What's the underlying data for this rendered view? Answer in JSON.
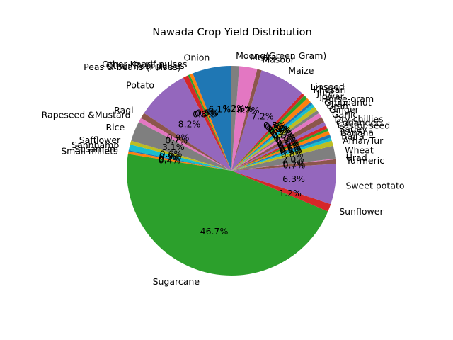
{
  "chart_data": {
    "type": "pie",
    "title": "Nawada Crop Yield Distribution",
    "start_angle_deg": 90,
    "direction": "counterclockwise",
    "palette": [
      "#1f77b4",
      "#ff7f0e",
      "#2ca02c",
      "#d62728",
      "#9467bd",
      "#8c564b",
      "#e377c2",
      "#7f7f7f",
      "#bcbd22",
      "#17becf"
    ],
    "slices": [
      {
        "label": "Onion",
        "value": 6.1,
        "pct_label": "6.1%"
      },
      {
        "label": "Other Kharif pulses",
        "value": 0.5,
        "pct_label": "0.5%"
      },
      {
        "label": "Other Rabi pulses",
        "value": 0.3,
        "pct_label": "0.3%"
      },
      {
        "label": "Peas & beans (Pulses)",
        "value": 0.8,
        "pct_label": "0.8%"
      },
      {
        "label": "Potato",
        "value": 8.2,
        "pct_label": "8.2%"
      },
      {
        "label": "Ragi",
        "value": 0.9,
        "pct_label": "0.9%"
      },
      {
        "label": "Rapeseed &Mustard",
        "value": 0.7,
        "pct_label": "0.7%"
      },
      {
        "label": "Rice",
        "value": 3.1,
        "pct_label": "3.1%"
      },
      {
        "label": "Safflower",
        "value": 0.6,
        "pct_label": "0.6%"
      },
      {
        "label": "Sannhamp",
        "value": 0.9,
        "pct_label": "0.9%"
      },
      {
        "label": "Sesamum",
        "value": 0.2,
        "pct_label": "0.2%"
      },
      {
        "label": "Small millets",
        "value": 0.4,
        "pct_label": "0.4%"
      },
      {
        "label": "Sugarcane",
        "value": 46.7,
        "pct_label": "46.7%"
      },
      {
        "label": "Sunflower",
        "value": 1.2,
        "pct_label": "1.2%"
      },
      {
        "label": "Sweet potato",
        "value": 6.3,
        "pct_label": "6.3%"
      },
      {
        "label": "Turmeric",
        "value": 0.7,
        "pct_label": "0.7%"
      },
      {
        "label": "Urad",
        "value": 0.1,
        "pct_label": "0.1%"
      },
      {
        "label": "Wheat",
        "value": 2.0,
        "pct_label": "2.0%"
      },
      {
        "label": "Arhar/Tur",
        "value": 0.8,
        "pct_label": "0.8%"
      },
      {
        "label": "Bajra",
        "value": 0.5,
        "pct_label": "0.5%"
      },
      {
        "label": "Banana",
        "value": 0.5,
        "pct_label": "0.5%"
      },
      {
        "label": "Barley",
        "value": 0.6,
        "pct_label": "0.6%"
      },
      {
        "label": "Castor seed",
        "value": 0.4,
        "pct_label": "0.4%"
      },
      {
        "label": "Coriander",
        "value": 0.5,
        "pct_label": "0.5%"
      },
      {
        "label": "Dry chillies",
        "value": 0.6,
        "pct_label": "0.6%"
      },
      {
        "label": "Garlic",
        "value": 0.9,
        "pct_label": "0.9%"
      },
      {
        "label": "Ginger",
        "value": 0.7,
        "pct_label": "0.7%"
      },
      {
        "label": "Gram",
        "value": 0.5,
        "pct_label": "0.5%"
      },
      {
        "label": "Groundnut",
        "value": 0.7,
        "pct_label": "0.7%"
      },
      {
        "label": "Horse-gram",
        "value": 0.5,
        "pct_label": "0.5%"
      },
      {
        "label": "Jowar",
        "value": 0.4,
        "pct_label": "0.4%"
      },
      {
        "label": "Jute",
        "value": 0.8,
        "pct_label": "0.8%"
      },
      {
        "label": "Khesari",
        "value": 0.6,
        "pct_label": "0.6%"
      },
      {
        "label": "Linseed",
        "value": 0.5,
        "pct_label": "0.5%"
      },
      {
        "label": "Maize",
        "value": 7.2,
        "pct_label": "7.2%"
      },
      {
        "label": "Masoor",
        "value": 0.7,
        "pct_label": "0.7%"
      },
      {
        "label": "Mesta",
        "value": 2.8,
        "pct_label": "2.8%"
      },
      {
        "label": "Moong(Green Gram)",
        "value": 1.2,
        "pct_label": "1.2%"
      }
    ]
  }
}
